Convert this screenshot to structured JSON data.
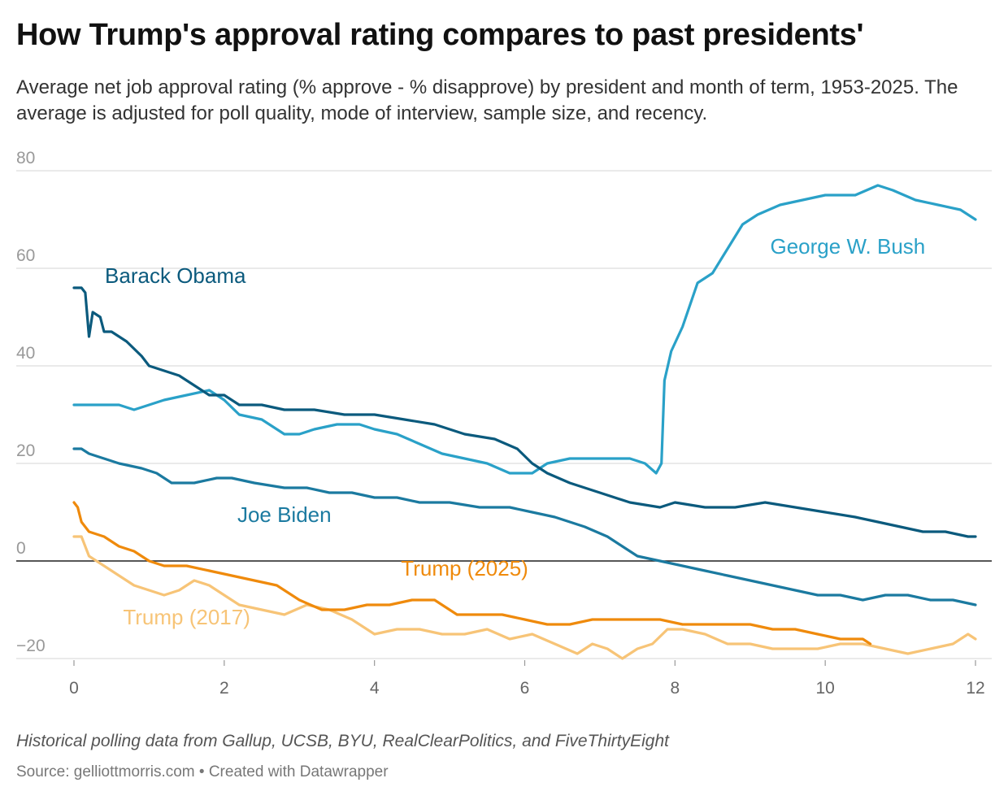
{
  "chart_data": {
    "type": "line",
    "title": "How Trump's approval rating compares to past presidents'",
    "subtitle": "Average net job approval rating (% approve - % disapprove) by president and month of term, 1953-2025. The average is adjusted for poll quality, mode of interview, sample size, and recency.",
    "notes": "Historical polling data from Gallup, UCSB, BYU, RealClearPolitics, and FiveThirtyEight",
    "source": "Source: gelliottmorris.com • Created with Datawrapper",
    "xlabel": "",
    "ylabel": "",
    "xlim": [
      0,
      12
    ],
    "ylim": [
      -20,
      80
    ],
    "x_ticks": [
      0,
      2,
      4,
      6,
      8,
      10,
      12
    ],
    "y_ticks": [
      -20,
      0,
      20,
      40,
      60,
      80
    ],
    "y_tick_labels": [
      "−20",
      "0",
      "20",
      "40",
      "60",
      "80"
    ],
    "zero_line": true,
    "series": [
      {
        "name": "George W. Bush",
        "color": "#2aa1c8",
        "points": [
          [
            0,
            32
          ],
          [
            0.6,
            32
          ],
          [
            0.8,
            31
          ],
          [
            1.0,
            32
          ],
          [
            1.2,
            33
          ],
          [
            1.5,
            34
          ],
          [
            1.8,
            35
          ],
          [
            2.0,
            33
          ],
          [
            2.2,
            30
          ],
          [
            2.5,
            29
          ],
          [
            2.8,
            26
          ],
          [
            3.0,
            26
          ],
          [
            3.2,
            27
          ],
          [
            3.5,
            28
          ],
          [
            3.8,
            28
          ],
          [
            4.0,
            27
          ],
          [
            4.3,
            26
          ],
          [
            4.6,
            24
          ],
          [
            4.9,
            22
          ],
          [
            5.2,
            21
          ],
          [
            5.5,
            20
          ],
          [
            5.8,
            18
          ],
          [
            6.1,
            18
          ],
          [
            6.3,
            20
          ],
          [
            6.6,
            21
          ],
          [
            7.0,
            21
          ],
          [
            7.4,
            21
          ],
          [
            7.6,
            20
          ],
          [
            7.75,
            18
          ],
          [
            7.82,
            20
          ],
          [
            7.86,
            37
          ],
          [
            7.95,
            43
          ],
          [
            8.1,
            48
          ],
          [
            8.3,
            57
          ],
          [
            8.5,
            59
          ],
          [
            8.7,
            64
          ],
          [
            8.9,
            69
          ],
          [
            9.1,
            71
          ],
          [
            9.4,
            73
          ],
          [
            9.7,
            74
          ],
          [
            10.0,
            75
          ],
          [
            10.4,
            75
          ],
          [
            10.7,
            77
          ],
          [
            10.9,
            76
          ],
          [
            11.2,
            74
          ],
          [
            11.5,
            73
          ],
          [
            11.8,
            72
          ],
          [
            12.0,
            70
          ]
        ]
      },
      {
        "name": "Barack Obama",
        "color": "#0b5a7d",
        "points": [
          [
            0,
            56
          ],
          [
            0.1,
            56
          ],
          [
            0.15,
            55
          ],
          [
            0.2,
            46
          ],
          [
            0.25,
            51
          ],
          [
            0.35,
            50
          ],
          [
            0.4,
            47
          ],
          [
            0.5,
            47
          ],
          [
            0.7,
            45
          ],
          [
            0.9,
            42
          ],
          [
            1.0,
            40
          ],
          [
            1.2,
            39
          ],
          [
            1.4,
            38
          ],
          [
            1.6,
            36
          ],
          [
            1.8,
            34
          ],
          [
            2.0,
            34
          ],
          [
            2.2,
            32
          ],
          [
            2.5,
            32
          ],
          [
            2.8,
            31
          ],
          [
            3.2,
            31
          ],
          [
            3.6,
            30
          ],
          [
            4.0,
            30
          ],
          [
            4.4,
            29
          ],
          [
            4.8,
            28
          ],
          [
            5.2,
            26
          ],
          [
            5.6,
            25
          ],
          [
            5.9,
            23
          ],
          [
            6.1,
            20
          ],
          [
            6.3,
            18
          ],
          [
            6.6,
            16
          ],
          [
            7.0,
            14
          ],
          [
            7.4,
            12
          ],
          [
            7.8,
            11
          ],
          [
            8.0,
            12
          ],
          [
            8.4,
            11
          ],
          [
            8.8,
            11
          ],
          [
            9.2,
            12
          ],
          [
            9.6,
            11
          ],
          [
            10.0,
            10
          ],
          [
            10.4,
            9
          ],
          [
            10.7,
            8
          ],
          [
            11.0,
            7
          ],
          [
            11.3,
            6
          ],
          [
            11.6,
            6
          ],
          [
            11.9,
            5
          ],
          [
            12.0,
            5
          ]
        ]
      },
      {
        "name": "Joe Biden",
        "color": "#1b7aa0",
        "points": [
          [
            0,
            23
          ],
          [
            0.1,
            23
          ],
          [
            0.2,
            22
          ],
          [
            0.4,
            21
          ],
          [
            0.6,
            20
          ],
          [
            0.9,
            19
          ],
          [
            1.1,
            18
          ],
          [
            1.3,
            16
          ],
          [
            1.6,
            16
          ],
          [
            1.9,
            17
          ],
          [
            2.1,
            17
          ],
          [
            2.4,
            16
          ],
          [
            2.8,
            15
          ],
          [
            3.1,
            15
          ],
          [
            3.4,
            14
          ],
          [
            3.7,
            14
          ],
          [
            4.0,
            13
          ],
          [
            4.3,
            13
          ],
          [
            4.6,
            12
          ],
          [
            5.0,
            12
          ],
          [
            5.4,
            11
          ],
          [
            5.8,
            11
          ],
          [
            6.1,
            10
          ],
          [
            6.4,
            9
          ],
          [
            6.8,
            7
          ],
          [
            7.1,
            5
          ],
          [
            7.3,
            3
          ],
          [
            7.5,
            1
          ],
          [
            7.8,
            0
          ],
          [
            8.1,
            -1
          ],
          [
            8.4,
            -2
          ],
          [
            8.7,
            -3
          ],
          [
            9.0,
            -4
          ],
          [
            9.3,
            -5
          ],
          [
            9.6,
            -6
          ],
          [
            9.9,
            -7
          ],
          [
            10.2,
            -7
          ],
          [
            10.5,
            -8
          ],
          [
            10.8,
            -7
          ],
          [
            11.1,
            -7
          ],
          [
            11.4,
            -8
          ],
          [
            11.7,
            -8
          ],
          [
            12.0,
            -9
          ]
        ]
      },
      {
        "name": "Trump (2025)",
        "color": "#ef8a0c",
        "points": [
          [
            0,
            12
          ],
          [
            0.05,
            11
          ],
          [
            0.1,
            8
          ],
          [
            0.2,
            6
          ],
          [
            0.4,
            5
          ],
          [
            0.6,
            3
          ],
          [
            0.8,
            2
          ],
          [
            1.0,
            0
          ],
          [
            1.2,
            -1
          ],
          [
            1.5,
            -1
          ],
          [
            1.8,
            -2
          ],
          [
            2.1,
            -3
          ],
          [
            2.4,
            -4
          ],
          [
            2.7,
            -5
          ],
          [
            3.0,
            -8
          ],
          [
            3.3,
            -10
          ],
          [
            3.6,
            -10
          ],
          [
            3.9,
            -9
          ],
          [
            4.2,
            -9
          ],
          [
            4.5,
            -8
          ],
          [
            4.8,
            -8
          ],
          [
            5.1,
            -11
          ],
          [
            5.4,
            -11
          ],
          [
            5.7,
            -11
          ],
          [
            6.0,
            -12
          ],
          [
            6.3,
            -13
          ],
          [
            6.6,
            -13
          ],
          [
            6.9,
            -12
          ],
          [
            7.2,
            -12
          ],
          [
            7.5,
            -12
          ],
          [
            7.8,
            -12
          ],
          [
            8.1,
            -13
          ],
          [
            8.4,
            -13
          ],
          [
            8.7,
            -13
          ],
          [
            9.0,
            -13
          ],
          [
            9.3,
            -14
          ],
          [
            9.6,
            -14
          ],
          [
            9.9,
            -15
          ],
          [
            10.2,
            -16
          ],
          [
            10.5,
            -16
          ],
          [
            10.6,
            -17
          ]
        ]
      },
      {
        "name": "Trump (2017)",
        "color": "#f7c477",
        "points": [
          [
            0,
            5
          ],
          [
            0.1,
            5
          ],
          [
            0.2,
            1
          ],
          [
            0.4,
            -1
          ],
          [
            0.6,
            -3
          ],
          [
            0.8,
            -5
          ],
          [
            1.0,
            -6
          ],
          [
            1.2,
            -7
          ],
          [
            1.4,
            -6
          ],
          [
            1.6,
            -4
          ],
          [
            1.8,
            -5
          ],
          [
            2.0,
            -7
          ],
          [
            2.2,
            -9
          ],
          [
            2.5,
            -10
          ],
          [
            2.8,
            -11
          ],
          [
            3.1,
            -9
          ],
          [
            3.4,
            -10
          ],
          [
            3.7,
            -12
          ],
          [
            4.0,
            -15
          ],
          [
            4.3,
            -14
          ],
          [
            4.6,
            -14
          ],
          [
            4.9,
            -15
          ],
          [
            5.2,
            -15
          ],
          [
            5.5,
            -14
          ],
          [
            5.8,
            -16
          ],
          [
            6.1,
            -15
          ],
          [
            6.4,
            -17
          ],
          [
            6.7,
            -19
          ],
          [
            6.9,
            -17
          ],
          [
            7.1,
            -18
          ],
          [
            7.3,
            -20
          ],
          [
            7.5,
            -18
          ],
          [
            7.7,
            -17
          ],
          [
            7.9,
            -14
          ],
          [
            8.1,
            -14
          ],
          [
            8.4,
            -15
          ],
          [
            8.7,
            -17
          ],
          [
            9.0,
            -17
          ],
          [
            9.3,
            -18
          ],
          [
            9.6,
            -18
          ],
          [
            9.9,
            -18
          ],
          [
            10.2,
            -17
          ],
          [
            10.5,
            -17
          ],
          [
            10.8,
            -18
          ],
          [
            11.1,
            -19
          ],
          [
            11.4,
            -18
          ],
          [
            11.7,
            -17
          ],
          [
            11.9,
            -15
          ],
          [
            12.0,
            -16
          ]
        ]
      }
    ],
    "labels": [
      {
        "text": "George W. Bush",
        "series": "George W. Bush",
        "at": [
          10.3,
          63
        ]
      },
      {
        "text": "Barack Obama",
        "series": "Barack Obama",
        "at": [
          1.35,
          57
        ]
      },
      {
        "text": "Joe Biden",
        "series": "Joe Biden",
        "at": [
          2.8,
          8
        ]
      },
      {
        "text": "Trump (2025)",
        "series": "Trump (2025)",
        "at": [
          5.2,
          -3
        ]
      },
      {
        "text": "Trump (2017)",
        "series": "Trump (2017)",
        "at": [
          1.5,
          -13
        ]
      }
    ]
  }
}
